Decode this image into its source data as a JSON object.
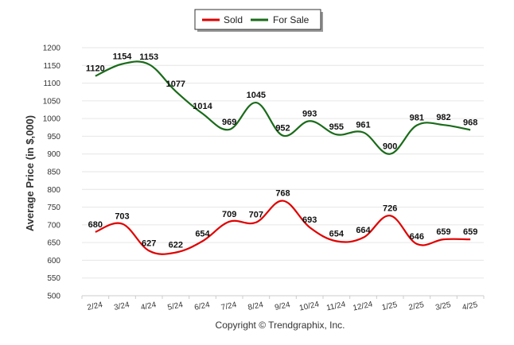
{
  "chart_data": {
    "type": "line",
    "categories": [
      "2/24",
      "3/24",
      "4/24",
      "5/24",
      "6/24",
      "7/24",
      "8/24",
      "9/24",
      "10/24",
      "11/24",
      "12/24",
      "1/25",
      "2/25",
      "3/25",
      "4/25"
    ],
    "series": [
      {
        "name": "Sold",
        "color": "#e00000",
        "values": [
          680,
          703,
          627,
          622,
          654,
          709,
          707,
          768,
          693,
          654,
          664,
          726,
          646,
          659,
          659
        ]
      },
      {
        "name": "For Sale",
        "color": "#1a6b1a",
        "values": [
          1120,
          1154,
          1153,
          1077,
          1014,
          969,
          1045,
          952,
          993,
          955,
          961,
          900,
          981,
          982,
          968
        ]
      }
    ],
    "ylabel": "Average Price (in $,000)",
    "xlabel": "",
    "ylim": [
      500,
      1200
    ],
    "yticks": [
      500,
      550,
      600,
      650,
      700,
      750,
      800,
      850,
      900,
      950,
      1000,
      1050,
      1100,
      1150,
      1200
    ],
    "grid": true,
    "legend_position": "top-center",
    "footer": "Copyright © Trendgraphix, Inc."
  }
}
